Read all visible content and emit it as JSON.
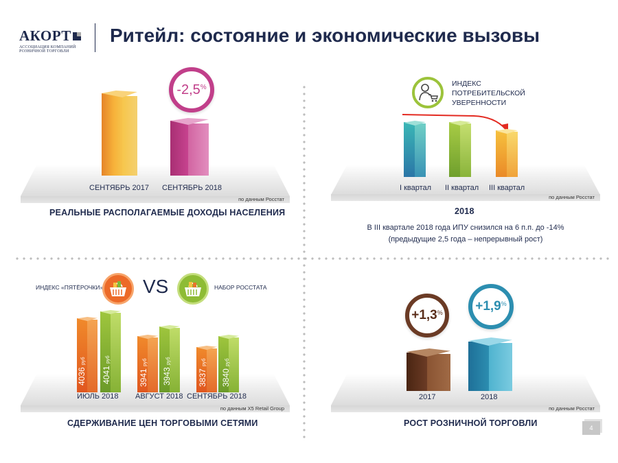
{
  "header": {
    "logo_main": "АКОРТ",
    "logo_sub1": "АССОЦИАЦИЯ КОМПАНИЙ",
    "logo_sub2": "РОЗНИЧНОЙ ТОРГОВЛИ",
    "title": "Ритейл: состояние и экономические вызовы"
  },
  "income": {
    "change": "-2,5",
    "change_pct": "%",
    "bars": [
      {
        "label": "СЕНТЯБРЬ 2017",
        "color": "#f2a22a"
      },
      {
        "label": "СЕНТЯБРЬ 2018",
        "color": "#c13f8a"
      }
    ],
    "source": "по данным Росстат",
    "caption": "РЕАЛЬНЫЕ РАСПОЛАГАЕМЫЕ ДОХОДЫ НАСЕЛЕНИЯ"
  },
  "confidence": {
    "title_line1": "ИНДЕКС",
    "title_line2": "ПОТРЕБИТЕЛЬСКОЙ",
    "title_line3": "УВЕРЕННОСТИ",
    "icon": "shopper-cart-icon",
    "bars": [
      {
        "label": "I квартал",
        "color": "#2f9ba5"
      },
      {
        "label": "II квартал",
        "color": "#8dbb3a"
      },
      {
        "label": "III квартал",
        "color": "#f2a22a"
      }
    ],
    "source": "по данным Росстат",
    "caption": "2018",
    "note_line1": "В III квартале 2018 года ИПУ снизился на 6 п.п. до -14%",
    "note_line2": "(предыдущие 2,5 года – непрерывный рост)"
  },
  "prices": {
    "left_title": "ИНДЕКС «ПЯТЁРОЧКИ»",
    "vs": "VS",
    "right_title": "НАБОР РОССТАТА",
    "unit": "руб",
    "groups": [
      {
        "label": "ИЮЛЬ 2018",
        "a": "4036",
        "b": "4041"
      },
      {
        "label": "АВГУСТ 2018",
        "a": "3941",
        "b": "3943"
      },
      {
        "label": "СЕНТЯБРЬ 2018",
        "a": "3837",
        "b": "3840"
      }
    ],
    "source": "по данным X5 Retail Group",
    "caption": "СДЕРЖИВАНИЕ ЦЕН ТОРГОВЫМИ СЕТЯМИ"
  },
  "retail": {
    "bars": [
      {
        "label": "2017",
        "change": "+1,3",
        "color": "#6b3b25"
      },
      {
        "label": "2018",
        "change": "+1,9",
        "color": "#2c8eb0"
      }
    ],
    "pct": "%",
    "source": "по данным Росстат",
    "caption": "РОСТ РОЗНИЧНОЙ ТОРГОВЛИ"
  },
  "page_number": "4"
}
